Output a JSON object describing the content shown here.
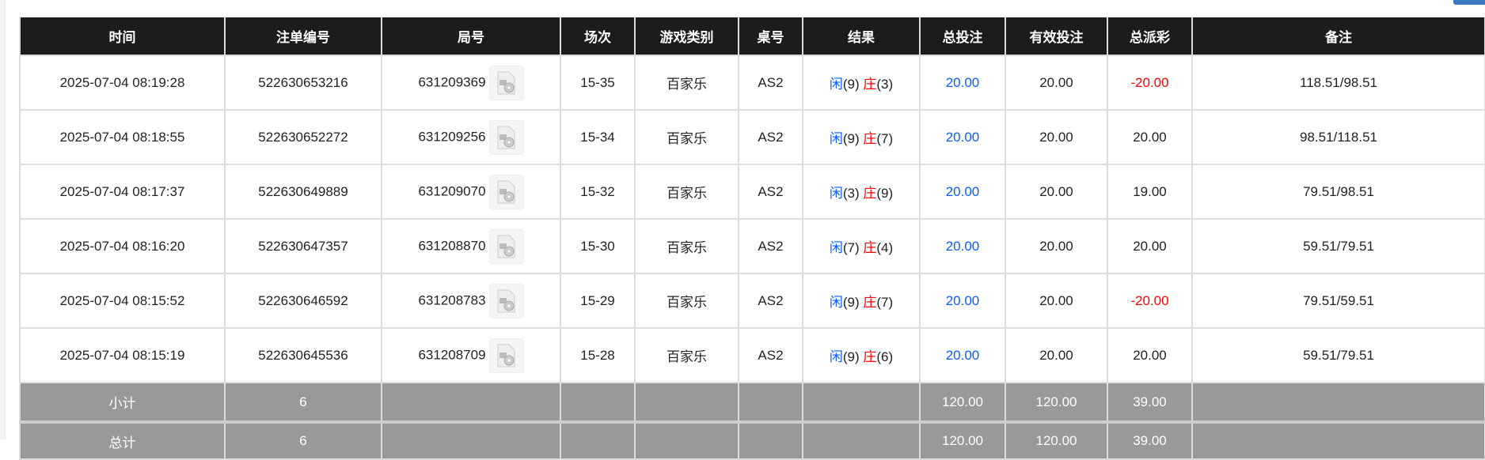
{
  "headers": [
    "时间",
    "注单编号",
    "局号",
    "场次",
    "游戏类别",
    "桌号",
    "结果",
    "总投注",
    "有效投注",
    "总派彩",
    "备注"
  ],
  "rows": [
    {
      "time": "2025-07-04 08:19:28",
      "order": "522630653216",
      "round": "631209369",
      "session": "15-35",
      "game": "百家乐",
      "table": "AS2",
      "player_label": "闲",
      "player": "(9)",
      "banker_label": "庄",
      "banker": "(3)",
      "bet": "20.00",
      "valid": "20.00",
      "payout": "-20.00",
      "payout_negative": true,
      "note": "118.51/98.51"
    },
    {
      "time": "2025-07-04 08:18:55",
      "order": "522630652272",
      "round": "631209256",
      "session": "15-34",
      "game": "百家乐",
      "table": "AS2",
      "player_label": "闲",
      "player": "(9)",
      "banker_label": "庄",
      "banker": "(7)",
      "bet": "20.00",
      "valid": "20.00",
      "payout": "20.00",
      "payout_negative": false,
      "note": "98.51/118.51"
    },
    {
      "time": "2025-07-04 08:17:37",
      "order": "522630649889",
      "round": "631209070",
      "session": "15-32",
      "game": "百家乐",
      "table": "AS2",
      "player_label": "闲",
      "player": "(3)",
      "banker_label": "庄",
      "banker": "(9)",
      "bet": "20.00",
      "valid": "20.00",
      "payout": "19.00",
      "payout_negative": false,
      "note": "79.51/98.51"
    },
    {
      "time": "2025-07-04 08:16:20",
      "order": "522630647357",
      "round": "631208870",
      "session": "15-30",
      "game": "百家乐",
      "table": "AS2",
      "player_label": "闲",
      "player": "(7)",
      "banker_label": "庄",
      "banker": "(4)",
      "bet": "20.00",
      "valid": "20.00",
      "payout": "20.00",
      "payout_negative": false,
      "note": "59.51/79.51"
    },
    {
      "time": "2025-07-04 08:15:52",
      "order": "522630646592",
      "round": "631208783",
      "session": "15-29",
      "game": "百家乐",
      "table": "AS2",
      "player_label": "闲",
      "player": "(9)",
      "banker_label": "庄",
      "banker": "(7)",
      "bet": "20.00",
      "valid": "20.00",
      "payout": "-20.00",
      "payout_negative": true,
      "note": "79.51/59.51"
    },
    {
      "time": "2025-07-04 08:15:19",
      "order": "522630645536",
      "round": "631208709",
      "session": "15-28",
      "game": "百家乐",
      "table": "AS2",
      "player_label": "闲",
      "player": "(9)",
      "banker_label": "庄",
      "banker": "(6)",
      "bet": "20.00",
      "valid": "20.00",
      "payout": "20.00",
      "payout_negative": false,
      "note": "59.51/79.51"
    }
  ],
  "subtotal": {
    "label": "小计",
    "count": "6",
    "bet": "120.00",
    "valid": "120.00",
    "payout": "39.00"
  },
  "total": {
    "label": "总计",
    "count": "6",
    "bet": "120.00",
    "valid": "120.00",
    "payout": "39.00"
  },
  "colors": {
    "header_bg": "#1c1c1c",
    "bet_blue": "#0a5cff",
    "negative_red": "#ff0000",
    "summary_bg": "#999999"
  }
}
